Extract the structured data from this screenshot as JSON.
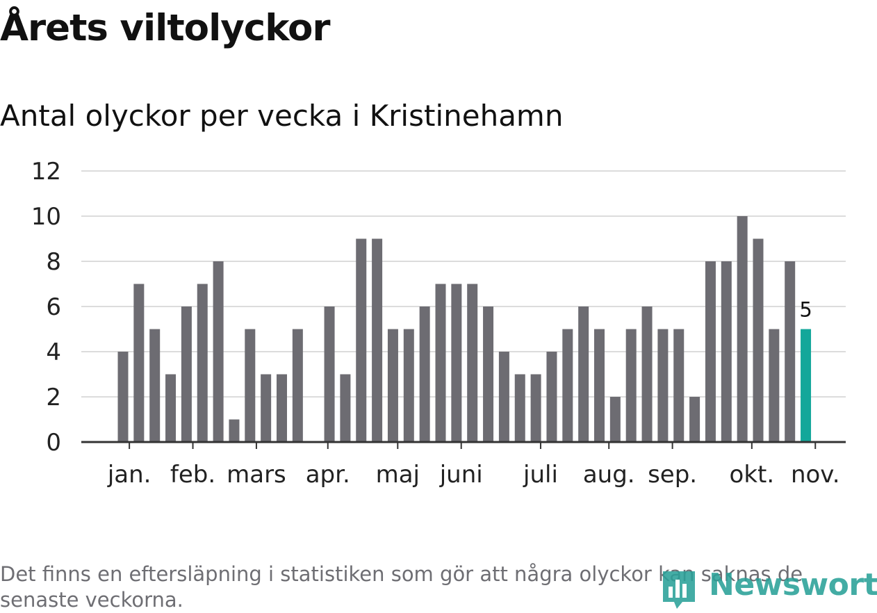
{
  "title": "Årets viltolyckor",
  "subtitle": "Antal olyckor per vecka i Kristinehamn",
  "footnote": "Det finns en eftersläpning i statistiken som gör att några olyckor kan saknas de senaste veckorna.",
  "logo": {
    "text": "Newsworthy",
    "icon": "newsworthy-logo-icon"
  },
  "colors": {
    "bar": "#6d6c72",
    "highlight": "#13a79a",
    "grid": "#dcdcdc",
    "axis": "#333333"
  },
  "chart_data": {
    "type": "bar",
    "ylim": [
      0,
      12
    ],
    "yticks": [
      0,
      2,
      4,
      6,
      8,
      10,
      12
    ],
    "grid": true,
    "values": [
      4,
      7,
      5,
      3,
      6,
      7,
      8,
      1,
      5,
      3,
      3,
      5,
      0,
      6,
      3,
      9,
      9,
      5,
      5,
      6,
      7,
      7,
      7,
      6,
      4,
      3,
      3,
      4,
      5,
      6,
      5,
      2,
      5,
      6,
      5,
      5,
      2,
      8,
      8,
      10,
      9,
      5,
      8,
      5
    ],
    "highlight_index": 43,
    "highlight_label": "5",
    "months": [
      {
        "label": "jan.",
        "week": 0.4
      },
      {
        "label": "feb.",
        "week": 4.4
      },
      {
        "label": "mars",
        "week": 8.4
      },
      {
        "label": "apr.",
        "week": 12.9
      },
      {
        "label": "maj",
        "week": 17.3
      },
      {
        "label": "juni",
        "week": 21.3
      },
      {
        "label": "juli",
        "week": 26.3
      },
      {
        "label": "aug.",
        "week": 30.6
      },
      {
        "label": "sep.",
        "week": 34.6
      },
      {
        "label": "okt.",
        "week": 39.6
      },
      {
        "label": "nov.",
        "week": 43.6
      }
    ]
  }
}
